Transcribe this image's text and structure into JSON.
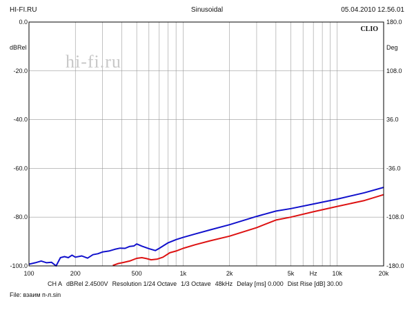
{
  "header": {
    "left": "HI-FI.RU",
    "center": "Sinusoidal",
    "right": "05.04.2010 12.56.01"
  },
  "footer": {
    "info_items": [
      "CH A",
      "dBRel 2.4500V",
      "Resolution 1/24 Octave",
      "1/3 Octave",
      "48kHz",
      "Delay [ms] 0.000",
      "Dist Rise [dB] 30.00"
    ],
    "file": "File: взаим п-л.sin"
  },
  "colors": {
    "series_blue": "#1010cc",
    "series_red": "#dd1111",
    "grid": "#999999",
    "watermark": "#c8c8c8",
    "watermark_accent": "#e8a0a0"
  },
  "chart_data": {
    "type": "line",
    "watermark": "hi-fi.ru",
    "brand": "CLIO",
    "x_scale": "log",
    "xlim": [
      100,
      20000
    ],
    "ylim": [
      -100,
      0
    ],
    "y2lim": [
      -180,
      180
    ],
    "ylabel": "dBRel",
    "y2label": "Deg",
    "xlabel_marker": "Hz",
    "xticks": [
      {
        "value": 100,
        "label": "100"
      },
      {
        "value": 200,
        "label": "200"
      },
      {
        "value": 500,
        "label": "500"
      },
      {
        "value": 1000,
        "label": "1k"
      },
      {
        "value": 2000,
        "label": "2k"
      },
      {
        "value": 5000,
        "label": "5k"
      },
      {
        "value": 10000,
        "label": "10k"
      },
      {
        "value": 20000,
        "label": "20k"
      }
    ],
    "xgrid": [
      100,
      200,
      300,
      400,
      500,
      600,
      700,
      800,
      900,
      1000,
      2000,
      3000,
      4000,
      5000,
      6000,
      7000,
      8000,
      9000,
      10000,
      20000
    ],
    "yticks_left": [
      "0.0",
      "-20.0",
      "-40.0",
      "-60.0",
      "-80.0",
      "-100.0"
    ],
    "yticks_right": [
      "180.0",
      "108.0",
      "36.0",
      "-36.0",
      "-108.0",
      "-180.0"
    ],
    "grid": true,
    "series": [
      {
        "color": "#1010cc",
        "points": [
          [
            100,
            -99.3
          ],
          [
            110,
            -98.7
          ],
          [
            120,
            -98.0
          ],
          [
            130,
            -98.7
          ],
          [
            140,
            -98.5
          ],
          [
            150,
            -100
          ],
          [
            160,
            -96.6
          ],
          [
            170,
            -96.2
          ],
          [
            180,
            -96.6
          ],
          [
            190,
            -95.6
          ],
          [
            200,
            -96.4
          ],
          [
            220,
            -95.9
          ],
          [
            240,
            -96.8
          ],
          [
            260,
            -95.4
          ],
          [
            280,
            -95.0
          ],
          [
            300,
            -94.3
          ],
          [
            330,
            -93.9
          ],
          [
            360,
            -93.2
          ],
          [
            390,
            -92.7
          ],
          [
            420,
            -92.8
          ],
          [
            450,
            -92.0
          ],
          [
            480,
            -91.8
          ],
          [
            500,
            -91.0
          ],
          [
            540,
            -91.9
          ],
          [
            600,
            -92.9
          ],
          [
            660,
            -93.7
          ],
          [
            700,
            -92.8
          ],
          [
            800,
            -90.5
          ],
          [
            900,
            -89.2
          ],
          [
            1000,
            -88.3
          ],
          [
            1200,
            -86.9
          ],
          [
            1500,
            -85.2
          ],
          [
            2000,
            -83.1
          ],
          [
            3000,
            -79.7
          ],
          [
            4000,
            -77.5
          ],
          [
            5000,
            -76.5
          ],
          [
            7000,
            -74.6
          ],
          [
            10000,
            -72.6
          ],
          [
            15000,
            -70.0
          ],
          [
            20000,
            -67.8
          ]
        ]
      },
      {
        "color": "#dd1111",
        "points": [
          [
            350,
            -99.8
          ],
          [
            380,
            -99.0
          ],
          [
            410,
            -98.6
          ],
          [
            450,
            -98.0
          ],
          [
            500,
            -96.9
          ],
          [
            540,
            -96.6
          ],
          [
            580,
            -97.0
          ],
          [
            620,
            -97.5
          ],
          [
            680,
            -97.2
          ],
          [
            740,
            -96.4
          ],
          [
            820,
            -94.6
          ],
          [
            900,
            -93.9
          ],
          [
            1000,
            -92.8
          ],
          [
            1200,
            -91.3
          ],
          [
            1500,
            -89.7
          ],
          [
            2000,
            -87.8
          ],
          [
            3000,
            -84.3
          ],
          [
            4000,
            -81.2
          ],
          [
            5000,
            -80.0
          ],
          [
            7000,
            -77.8
          ],
          [
            10000,
            -75.6
          ],
          [
            15000,
            -73.2
          ],
          [
            20000,
            -70.8
          ]
        ]
      }
    ]
  }
}
